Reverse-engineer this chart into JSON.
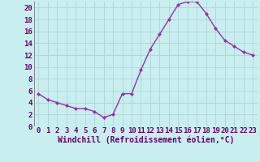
{
  "x": [
    0,
    1,
    2,
    3,
    4,
    5,
    6,
    7,
    8,
    9,
    10,
    11,
    12,
    13,
    14,
    15,
    16,
    17,
    18,
    19,
    20,
    21,
    22,
    23
  ],
  "y": [
    5.5,
    4.5,
    4.0,
    3.5,
    3.0,
    3.0,
    2.5,
    1.5,
    2.0,
    5.5,
    5.5,
    9.5,
    13.0,
    15.5,
    18.0,
    20.5,
    21.0,
    21.0,
    19.0,
    16.5,
    14.5,
    13.5,
    12.5,
    12.0
  ],
  "xlabel": "Windchill (Refroidissement éolien,°C)",
  "ylim": [
    0,
    21
  ],
  "xlim": [
    -0.5,
    23.5
  ],
  "yticks": [
    0,
    2,
    4,
    6,
    8,
    10,
    12,
    14,
    16,
    18,
    20
  ],
  "xticks": [
    0,
    1,
    2,
    3,
    4,
    5,
    6,
    7,
    8,
    9,
    10,
    11,
    12,
    13,
    14,
    15,
    16,
    17,
    18,
    19,
    20,
    21,
    22,
    23
  ],
  "line_color": "#993399",
  "marker_color": "#993399",
  "bg_color": "#c8eef0",
  "grid_color": "#b0d8da",
  "axes_bg": "#c8eef0",
  "xlabel_color": "#660066",
  "tick_color": "#660066",
  "xlabel_fontsize": 7.0,
  "tick_fontsize": 6.5
}
